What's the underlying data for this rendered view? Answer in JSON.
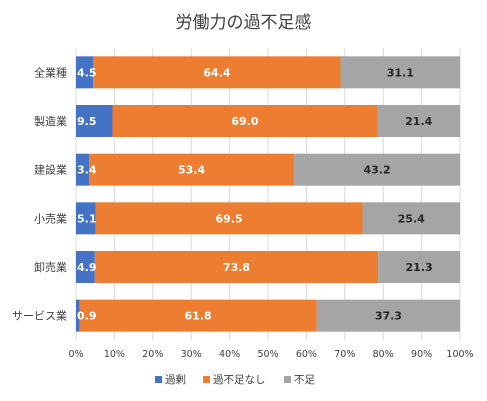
{
  "chart_data": {
    "type": "bar",
    "orientation": "horizontal",
    "stacked": "percent",
    "title": "労働力の過不足感",
    "categories": [
      "全業種",
      "製造業",
      "建設業",
      "小売業",
      "卸売業",
      "サービス業"
    ],
    "series": [
      {
        "name": "過剰",
        "color": "#4472C4",
        "values": [
          4.5,
          9.5,
          3.4,
          5.1,
          4.9,
          0.9
        ]
      },
      {
        "name": "過不足なし",
        "color": "#ED7D31",
        "values": [
          64.4,
          69.0,
          53.4,
          69.5,
          73.8,
          61.8
        ]
      },
      {
        "name": "不足",
        "color": "#A5A5A5",
        "values": [
          31.1,
          21.4,
          43.2,
          25.4,
          21.3,
          37.3
        ]
      }
    ],
    "data_labels": [
      [
        "4.5",
        "64.4",
        "31.1"
      ],
      [
        "9.5",
        "69.0",
        "21.4"
      ],
      [
        "3.4",
        "53.4",
        "43.2"
      ],
      [
        "5.1",
        "69.5",
        "25.4"
      ],
      [
        "4.9",
        "73.8",
        "21.3"
      ],
      [
        "0.9",
        "61.8",
        "37.3"
      ]
    ],
    "xlim": [
      0,
      100
    ],
    "x_ticks": [
      "0%",
      "10%",
      "20%",
      "30%",
      "40%",
      "50%",
      "60%",
      "70%",
      "80%",
      "90%",
      "100%"
    ],
    "grid": "vertical",
    "legend_position": "bottom"
  }
}
